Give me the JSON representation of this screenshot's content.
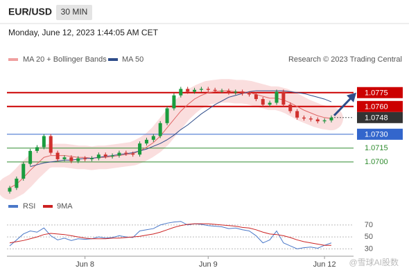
{
  "header": {
    "symbol": "EUR/USD",
    "interval": "30 MIN",
    "timestamp": "Monday, June 12, 2023 1:44:05 AM CET",
    "legend": [
      "MA 20 + Bollinger Bands",
      "MA 50"
    ],
    "credit": "Research © 2023 Trading Central",
    "watermark": "@雪球AI股数"
  },
  "chart_data": [
    {
      "type": "candlestick",
      "categories": [
        null,
        null,
        null,
        null,
        null,
        null,
        null,
        null,
        null,
        null,
        null,
        "Jun 8",
        null,
        null,
        null,
        null,
        null,
        null,
        null,
        null,
        null,
        null,
        null,
        null,
        null,
        null,
        null,
        null,
        null,
        "Jun 9",
        null,
        null,
        null,
        null,
        null,
        null,
        null,
        null,
        null,
        null,
        null,
        null,
        null,
        null,
        null,
        null,
        "Jun 12",
        null
      ],
      "open": [
        1.0668,
        1.0672,
        1.0682,
        1.0698,
        1.0712,
        1.0716,
        1.0728,
        1.071,
        1.0703,
        1.0705,
        1.0701,
        1.0704,
        1.0703,
        1.0704,
        1.0708,
        1.0706,
        1.0707,
        1.071,
        1.0709,
        1.0708,
        1.072,
        1.0724,
        1.0728,
        1.0742,
        1.0758,
        1.0772,
        1.0779,
        1.0776,
        1.0778,
        1.0779,
        1.0778,
        1.0777,
        1.0777,
        1.0775,
        1.0776,
        1.0774,
        1.0773,
        1.0768,
        1.0762,
        1.0764,
        1.0776,
        1.0762,
        1.0755,
        1.0748,
        1.0747,
        1.0746,
        1.0744,
        1.0745
      ],
      "close": [
        1.0672,
        1.0682,
        1.0698,
        1.0712,
        1.0716,
        1.0728,
        1.071,
        1.0703,
        1.0705,
        1.0701,
        1.0704,
        1.0703,
        1.0704,
        1.0708,
        1.0706,
        1.0707,
        1.071,
        1.0709,
        1.0708,
        1.072,
        1.0724,
        1.0728,
        1.0742,
        1.0758,
        1.0772,
        1.0779,
        1.0776,
        1.0778,
        1.0779,
        1.0778,
        1.0777,
        1.0777,
        1.0775,
        1.0776,
        1.0774,
        1.0773,
        1.0768,
        1.0762,
        1.0764,
        1.0776,
        1.0762,
        1.0755,
        1.0748,
        1.0747,
        1.0746,
        1.0744,
        1.0745,
        1.0748
      ],
      "series": [
        {
          "name": "MA 20 + Bollinger Bands",
          "color": "#e06666",
          "values": [
            1.0672,
            1.0676,
            1.0683,
            1.0691,
            1.0698,
            1.0705,
            1.0707,
            1.0707,
            1.0707,
            1.0706,
            1.0705,
            1.0705,
            1.0704,
            1.0705,
            1.0705,
            1.0706,
            1.0707,
            1.0708,
            1.0709,
            1.0712,
            1.0716,
            1.0721,
            1.0728,
            1.0737,
            1.0746,
            1.0755,
            1.0762,
            1.0768,
            1.0772,
            1.0775,
            1.0776,
            1.0777,
            1.0777,
            1.0776,
            1.0776,
            1.0775,
            1.0773,
            1.0771,
            1.0769,
            1.0769,
            1.0767,
            1.0764,
            1.076,
            1.0756,
            1.0753,
            1.075,
            1.0748,
            1.0747
          ]
        },
        {
          "name": "MA 50",
          "color": "#2f4d8a",
          "values": [
            null,
            null,
            null,
            1.0695,
            1.0697,
            1.0699,
            1.07,
            1.0701,
            1.0702,
            1.0702,
            1.0703,
            1.0704,
            1.0704,
            1.0705,
            1.0706,
            1.0707,
            1.0708,
            1.0709,
            1.071,
            1.0712,
            1.0714,
            1.0717,
            1.072,
            1.0724,
            1.0729,
            1.0735,
            1.074,
            1.0746,
            1.0752,
            1.0757,
            1.0762,
            1.0766,
            1.077,
            1.0772,
            1.0774,
            1.0776,
            1.0777,
            1.0777,
            1.0777,
            1.0777,
            1.0777,
            1.0776,
            1.0775,
            1.0774,
            1.0772,
            1.077,
            1.0768,
            1.0765
          ]
        }
      ],
      "ylim": [
        1.0664,
        1.0804
      ],
      "levels": [
        {
          "price": 1.0775,
          "color": "#cc0000",
          "kind": "box"
        },
        {
          "price": {
            "value": 1.076,
            "label": "1.0760"
          },
          "color": "#cc0000",
          "kind": "box"
        },
        {
          "price": 1.0748,
          "color": "#333333",
          "kind": "current"
        },
        {
          "price": {
            "value": 1.073,
            "label": "1.0730"
          },
          "color": "#3366cc",
          "kind": "box"
        },
        {
          "price": 1.0715,
          "color": "#2e8b2e",
          "kind": "text"
        },
        {
          "price": {
            "value": 1.07,
            "label": "1.0700"
          },
          "color": "#2e8b2e",
          "kind": "text"
        }
      ]
    },
    {
      "type": "line",
      "series": [
        {
          "name": "RSI",
          "color": "#4a78c8",
          "values": [
            35,
            45,
            55,
            60,
            58,
            65,
            52,
            45,
            48,
            44,
            47,
            46,
            47,
            50,
            48,
            49,
            52,
            50,
            49,
            60,
            62,
            64,
            70,
            73,
            75,
            76,
            70,
            72,
            71,
            69,
            68,
            67,
            64,
            65,
            62,
            60,
            52,
            40,
            45,
            60,
            40,
            35,
            30,
            32,
            33,
            31,
            36,
            40
          ]
        },
        {
          "name": "9MA",
          "color": "#cc2222",
          "values": [
            40,
            42,
            44,
            47,
            50,
            54,
            56,
            55,
            54,
            52,
            50,
            48,
            47,
            47,
            47,
            48,
            48,
            49,
            50,
            51,
            53,
            55,
            58,
            62,
            66,
            69,
            71,
            72,
            72,
            72,
            71,
            70,
            69,
            68,
            66,
            65,
            62,
            58,
            55,
            54,
            52,
            49,
            45,
            42,
            40,
            38,
            36,
            36
          ]
        }
      ],
      "ylim": [
        20,
        78
      ],
      "yticks": [
        70,
        50,
        30
      ]
    }
  ]
}
